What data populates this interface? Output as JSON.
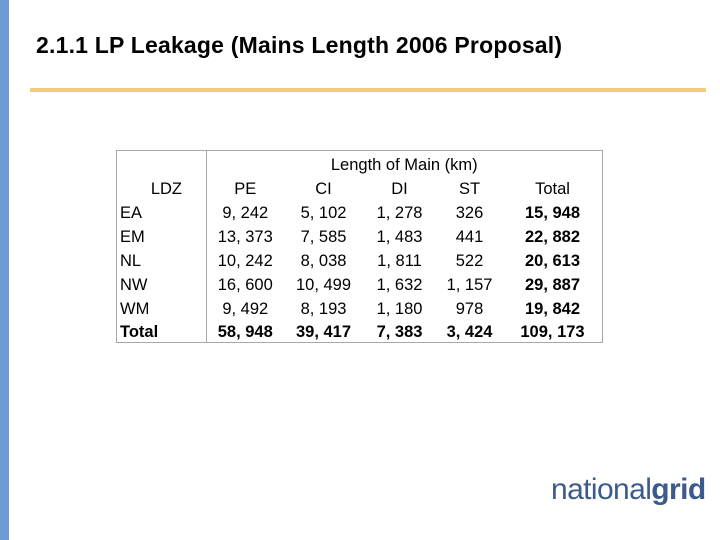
{
  "slide": {
    "title": "2.1.1   LP Leakage (Mains Length 2006 Proposal)"
  },
  "table": {
    "group_header": "Length of Main (km)",
    "columns": {
      "ldz": "LDZ",
      "pe": "PE",
      "ci": "CI",
      "di": "DI",
      "st": "ST",
      "total": "Total"
    },
    "rows": [
      {
        "ldz": "EA",
        "pe": "9, 242",
        "ci": "5, 102",
        "di": "1, 278",
        "st": "326",
        "total": "15, 948"
      },
      {
        "ldz": "EM",
        "pe": "13, 373",
        "ci": "7, 585",
        "di": "1, 483",
        "st": "441",
        "total": "22, 882"
      },
      {
        "ldz": "NL",
        "pe": "10, 242",
        "ci": "8, 038",
        "di": "1, 811",
        "st": "522",
        "total": "20, 613"
      },
      {
        "ldz": "NW",
        "pe": "16, 600",
        "ci": "10, 499",
        "di": "1, 632",
        "st": "1, 157",
        "total": "29, 887"
      },
      {
        "ldz": "WM",
        "pe": "9, 492",
        "ci": "8, 193",
        "di": "1, 180",
        "st": "978",
        "total": "19, 842"
      },
      {
        "ldz": "Total",
        "pe": "58, 948",
        "ci": "39, 417",
        "di": "7, 383",
        "st": "3, 424",
        "total": "109, 173"
      }
    ]
  },
  "logo": {
    "part1": "national",
    "part2": "grid"
  },
  "colors": {
    "left_bar": "#6d9bd6",
    "title_rule": "#f2cd7a",
    "logo": "#3d5a8c"
  }
}
